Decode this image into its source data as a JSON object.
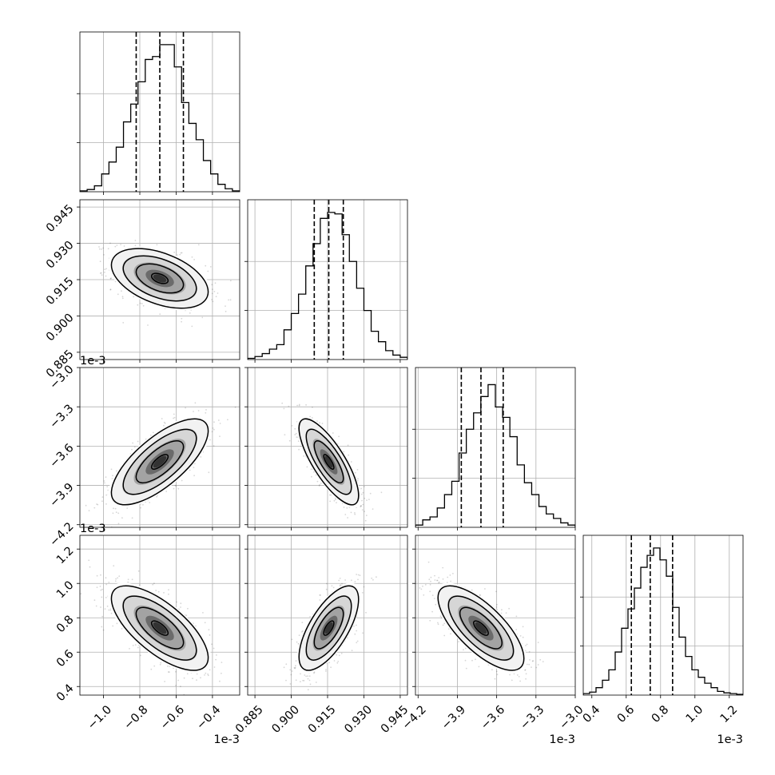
{
  "chart_data": {
    "type": "corner",
    "parameters": [
      {
        "scale_label": "1e-3",
        "range": [
          -1.13,
          -0.25
        ],
        "median": -0.69,
        "q16": -0.82,
        "q84": -0.56,
        "ticks": [
          -1.0,
          -0.8,
          -0.6,
          -0.4
        ],
        "tick_labels": [
          "−1.0",
          "−0.8",
          "−0.6",
          "−0.4"
        ]
      },
      {
        "scale_label": "",
        "range": [
          0.882,
          0.948
        ],
        "median": 0.9155,
        "q16": 0.9095,
        "q84": 0.9215,
        "ticks": [
          0.885,
          0.9,
          0.915,
          0.93,
          0.945
        ],
        "tick_labels": [
          "0.885",
          "0.900",
          "0.915",
          "0.930",
          "0.945"
        ]
      },
      {
        "scale_label": "1e-3",
        "range": [
          -4.22,
          -3.0
        ],
        "median": -3.72,
        "q16": -3.87,
        "q84": -3.55,
        "ticks": [
          -4.2,
          -3.9,
          -3.6,
          -3.3,
          -3.0
        ],
        "tick_labels": [
          "−4.2",
          "−3.9",
          "−3.6",
          "−3.3",
          "−3.0"
        ]
      },
      {
        "scale_label": "1e-3",
        "range": [
          0.35,
          1.28
        ],
        "median": 0.74,
        "q16": 0.63,
        "q84": 0.87,
        "ticks": [
          0.4,
          0.6,
          0.8,
          1.0,
          1.2
        ],
        "tick_labels": [
          "0.4",
          "0.6",
          "0.8",
          "1.0",
          "1.2"
        ]
      }
    ],
    "correlations": [
      {
        "row": 1,
        "col": 0,
        "r": -0.45
      },
      {
        "row": 2,
        "col": 0,
        "r": 0.72
      },
      {
        "row": 2,
        "col": 1,
        "r": -0.78
      },
      {
        "row": 3,
        "col": 0,
        "r": -0.7
      },
      {
        "row": 3,
        "col": 1,
        "r": 0.68
      },
      {
        "row": 3,
        "col": 2,
        "r": -0.72
      }
    ],
    "histograms": [
      [
        0.006,
        0.015,
        0.04,
        0.12,
        0.2,
        0.3,
        0.47,
        0.59,
        0.74,
        0.89,
        0.91,
        0.99,
        0.99,
        0.84,
        0.6,
        0.46,
        0.35,
        0.21,
        0.12,
        0.05,
        0.02,
        0.006
      ],
      [
        0.008,
        0.02,
        0.04,
        0.07,
        0.1,
        0.2,
        0.31,
        0.44,
        0.63,
        0.78,
        0.95,
        0.99,
        0.98,
        0.84,
        0.66,
        0.48,
        0.33,
        0.19,
        0.12,
        0.06,
        0.03,
        0.015
      ],
      [
        0.015,
        0.05,
        0.07,
        0.13,
        0.22,
        0.31,
        0.5,
        0.66,
        0.77,
        0.88,
        0.96,
        0.81,
        0.74,
        0.61,
        0.42,
        0.3,
        0.22,
        0.14,
        0.09,
        0.06,
        0.03,
        0.015
      ],
      [
        0.01,
        0.02,
        0.05,
        0.1,
        0.17,
        0.29,
        0.45,
        0.58,
        0.72,
        0.86,
        0.94,
        0.99,
        0.91,
        0.8,
        0.59,
        0.39,
        0.26,
        0.17,
        0.12,
        0.08,
        0.05,
        0.025,
        0.015,
        0.01,
        0.005
      ]
    ],
    "grid": true,
    "quantile_lines": "dashed"
  }
}
